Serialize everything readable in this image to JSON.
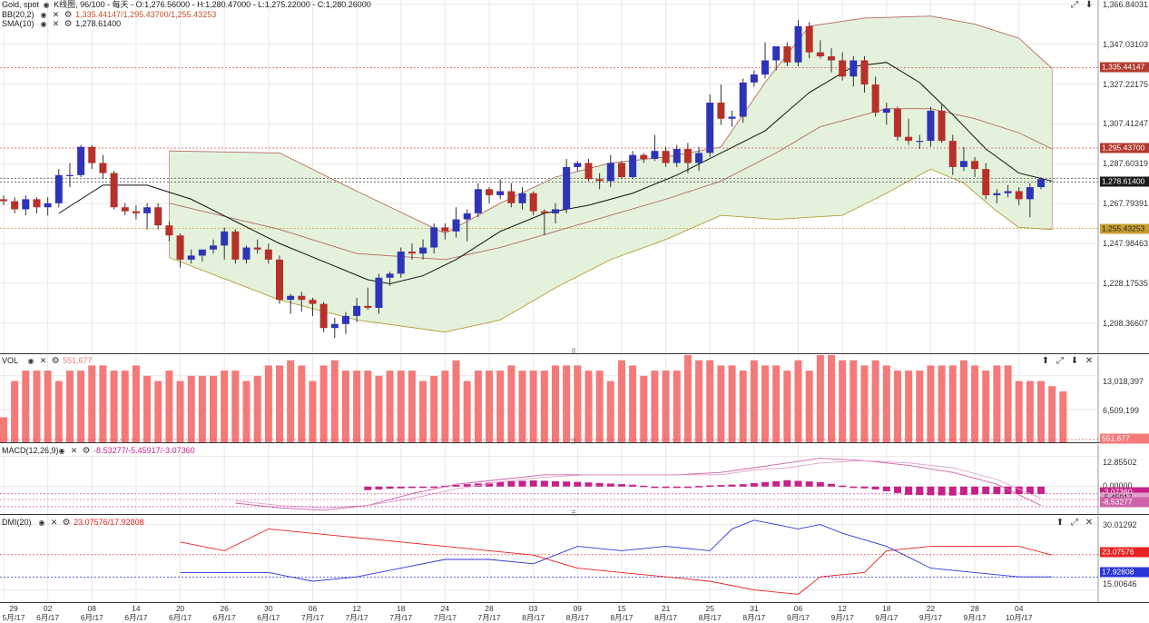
{
  "colors": {
    "up": "#2d34b8",
    "down": "#b8302a",
    "band_fill": "#e4f2dc",
    "band_line": "#b46a5c",
    "band_lower": "#b89a35",
    "sma": "#111111",
    "vol": "#f47a7a",
    "macd_hist": "#c6218a",
    "macd_line": "#cf62a8",
    "signal_line": "#e0a0cc",
    "dmi_plus": "#e82020",
    "dmi_minus": "#2a36d6",
    "grid": "#e8e8e8",
    "sep": "#333333"
  },
  "price_pane": {
    "title_prefix": "Gold, spot",
    "title_ohlc": "K线图, 96/100 - 每天 - O:1,276.56000 - H:1,280.47000 - L:1,275.22000 - C:1,280.26000",
    "bb_label": "BB(20,2)",
    "bb_values": "1,335.44147/1,295.43700/1,255.43253",
    "sma_label": "SMA(10)",
    "sma_value": "1,278.61400",
    "y_ticks": [
      "1,366.84031",
      "1,347.03103",
      "1,327.22175",
      "1,307.41247",
      "1,287.60319",
      "1,267.79391",
      "1,247.98463",
      "1,228.17535",
      "1,208.36607"
    ],
    "tags": {
      "bb_upper": "1,335.44147",
      "bb_mid": "1,295.43700",
      "last": "1,278.61400",
      "bb_lower": "1,255.43253"
    },
    "ref_lines": [
      1335.44,
      1295.44,
      1280.26,
      1278.61,
      1255.43
    ],
    "ymin": 1193,
    "ymax": 1369
  },
  "vol_pane": {
    "label": "VOL",
    "value": "551,677",
    "y_ticks": [
      "13,018,397",
      "6,509,199"
    ],
    "tag": "551,677",
    "ymax": 17000000
  },
  "macd_pane": {
    "label": "MACD(12,26,9)",
    "values": "-8.53277/-5.45917/-3.07360",
    "y_ticks": [
      "12.85502",
      "0.00000"
    ],
    "tags": {
      "hist": "-3.07360",
      "signal": "-5.45917",
      "macd": "-8.53277"
    },
    "ymin": -12,
    "ymax": 18
  },
  "dmi_pane": {
    "label": "DMI(20)",
    "values": "23.07576/17.92808",
    "y_ticks": [
      "30.01292",
      "15.00646"
    ],
    "tags": {
      "plus": "23.07576",
      "minus": "17.92808"
    },
    "ymin": 12,
    "ymax": 32
  },
  "x_labels": [
    {
      "day": "29",
      "mon": "5月/17",
      "i": 0
    },
    {
      "day": "02",
      "mon": "6月/17",
      "i": 4
    },
    {
      "day": "08",
      "mon": "6月/17",
      "i": 8
    },
    {
      "day": "14",
      "mon": "6月/17",
      "i": 12
    },
    {
      "day": "20",
      "mon": "6月/17",
      "i": 16
    },
    {
      "day": "26",
      "mon": "6月/17",
      "i": 20
    },
    {
      "day": "30",
      "mon": "6月/17",
      "i": 24
    },
    {
      "day": "06",
      "mon": "7月/17",
      "i": 28
    },
    {
      "day": "12",
      "mon": "7月/17",
      "i": 32
    },
    {
      "day": "18",
      "mon": "7月/17",
      "i": 36
    },
    {
      "day": "24",
      "mon": "7月/17",
      "i": 40
    },
    {
      "day": "28",
      "mon": "7月/17",
      "i": 44
    },
    {
      "day": "03",
      "mon": "8月/17",
      "i": 48
    },
    {
      "day": "09",
      "mon": "8月/17",
      "i": 52
    },
    {
      "day": "15",
      "mon": "8月/17",
      "i": 56
    },
    {
      "day": "21",
      "mon": "8月/17",
      "i": 60
    },
    {
      "day": "25",
      "mon": "8月/17",
      "i": 64
    },
    {
      "day": "31",
      "mon": "8月/17",
      "i": 68
    },
    {
      "day": "06",
      "mon": "9月/17",
      "i": 72
    },
    {
      "day": "12",
      "mon": "9月/17",
      "i": 76
    },
    {
      "day": "18",
      "mon": "9月/17",
      "i": 80
    },
    {
      "day": "22",
      "mon": "9月/17",
      "i": 84
    },
    {
      "day": "28",
      "mon": "9月/17",
      "i": 88
    },
    {
      "day": "04",
      "mon": "10月/17",
      "i": 92
    }
  ],
  "chart_data": {
    "type": "candlestick",
    "instrument": "Gold, spot",
    "candles_ohlc": [
      [
        1270,
        1272,
        1267,
        1269
      ],
      [
        1269,
        1271,
        1263,
        1265
      ],
      [
        1265,
        1272,
        1262,
        1270
      ],
      [
        1270,
        1271,
        1263,
        1266
      ],
      [
        1266,
        1271,
        1262,
        1268
      ],
      [
        1268,
        1285,
        1266,
        1282
      ],
      [
        1282,
        1288,
        1276,
        1282
      ],
      [
        1282,
        1297,
        1281,
        1296
      ],
      [
        1296,
        1297,
        1285,
        1288
      ],
      [
        1288,
        1292,
        1280,
        1283
      ],
      [
        1283,
        1284,
        1265,
        1266
      ],
      [
        1266,
        1268,
        1262,
        1264
      ],
      [
        1264,
        1267,
        1260,
        1263
      ],
      [
        1263,
        1268,
        1255,
        1266
      ],
      [
        1266,
        1268,
        1255,
        1257
      ],
      [
        1257,
        1259,
        1249,
        1252
      ],
      [
        1252,
        1253,
        1236,
        1240
      ],
      [
        1240,
        1245,
        1238,
        1242
      ],
      [
        1242,
        1245,
        1239,
        1245
      ],
      [
        1245,
        1250,
        1243,
        1247
      ],
      [
        1247,
        1256,
        1240,
        1254
      ],
      [
        1254,
        1255,
        1238,
        1240
      ],
      [
        1240,
        1247,
        1238,
        1246
      ],
      [
        1246,
        1250,
        1243,
        1245
      ],
      [
        1245,
        1248,
        1238,
        1240
      ],
      [
        1240,
        1242,
        1218,
        1220
      ],
      [
        1220,
        1223,
        1213,
        1222
      ],
      [
        1222,
        1224,
        1214,
        1220
      ],
      [
        1220,
        1221,
        1212,
        1218
      ],
      [
        1218,
        1219,
        1204,
        1206
      ],
      [
        1206,
        1211,
        1201,
        1208
      ],
      [
        1208,
        1214,
        1203,
        1212
      ],
      [
        1212,
        1221,
        1209,
        1217
      ],
      [
        1217,
        1226,
        1215,
        1216
      ],
      [
        1216,
        1233,
        1213,
        1231
      ],
      [
        1231,
        1234,
        1227,
        1233
      ],
      [
        1233,
        1246,
        1231,
        1244
      ],
      [
        1244,
        1248,
        1240,
        1243
      ],
      [
        1243,
        1250,
        1240,
        1246
      ],
      [
        1246,
        1258,
        1243,
        1256
      ],
      [
        1256,
        1258,
        1250,
        1254
      ],
      [
        1254,
        1266,
        1251,
        1260
      ],
      [
        1260,
        1265,
        1249,
        1263
      ],
      [
        1263,
        1278,
        1261,
        1275
      ],
      [
        1275,
        1276,
        1268,
        1272
      ],
      [
        1272,
        1280,
        1270,
        1274
      ],
      [
        1274,
        1278,
        1266,
        1268
      ],
      [
        1268,
        1276,
        1265,
        1273
      ],
      [
        1273,
        1274,
        1262,
        1264
      ],
      [
        1264,
        1265,
        1252,
        1263
      ],
      [
        1263,
        1268,
        1258,
        1265
      ],
      [
        1265,
        1290,
        1263,
        1286
      ],
      [
        1286,
        1289,
        1284,
        1288
      ],
      [
        1288,
        1290,
        1279,
        1280
      ],
      [
        1280,
        1283,
        1275,
        1279
      ],
      [
        1279,
        1292,
        1276,
        1288
      ],
      [
        1288,
        1289,
        1280,
        1281
      ],
      [
        1281,
        1294,
        1280,
        1292
      ],
      [
        1292,
        1293,
        1288,
        1290
      ],
      [
        1290,
        1302,
        1289,
        1294
      ],
      [
        1294,
        1296,
        1286,
        1288
      ],
      [
        1288,
        1297,
        1286,
        1295
      ],
      [
        1295,
        1298,
        1283,
        1288
      ],
      [
        1288,
        1296,
        1284,
        1293
      ],
      [
        1293,
        1322,
        1291,
        1318
      ],
      [
        1318,
        1327,
        1307,
        1310
      ],
      [
        1310,
        1314,
        1306,
        1311
      ],
      [
        1311,
        1330,
        1308,
        1328
      ],
      [
        1328,
        1334,
        1326,
        1332
      ],
      [
        1332,
        1348,
        1330,
        1339
      ],
      [
        1339,
        1346,
        1334,
        1346
      ],
      [
        1346,
        1348,
        1336,
        1338
      ],
      [
        1338,
        1359,
        1336,
        1356
      ],
      [
        1356,
        1358,
        1340,
        1343
      ],
      [
        1343,
        1349,
        1340,
        1341
      ],
      [
        1341,
        1345,
        1333,
        1339
      ],
      [
        1339,
        1343,
        1329,
        1331
      ],
      [
        1331,
        1341,
        1326,
        1339
      ],
      [
        1339,
        1341,
        1323,
        1327
      ],
      [
        1327,
        1331,
        1311,
        1313
      ],
      [
        1313,
        1318,
        1307,
        1315
      ],
      [
        1315,
        1316,
        1299,
        1301
      ],
      [
        1301,
        1310,
        1297,
        1299
      ],
      [
        1299,
        1302,
        1295,
        1299
      ],
      [
        1299,
        1316,
        1296,
        1314
      ],
      [
        1314,
        1317,
        1298,
        1299
      ],
      [
        1299,
        1302,
        1282,
        1286
      ],
      [
        1286,
        1296,
        1284,
        1289
      ],
      [
        1289,
        1291,
        1281,
        1285
      ],
      [
        1285,
        1288,
        1270,
        1272
      ],
      [
        1272,
        1275,
        1268,
        1273
      ],
      [
        1273,
        1277,
        1271,
        1274
      ],
      [
        1274,
        1276,
        1267,
        1270
      ],
      [
        1270,
        1278,
        1261,
        1276
      ],
      [
        1276,
        1281,
        1275,
        1280
      ]
    ],
    "sma10": [
      [
        5,
        1263
      ],
      [
        9,
        1277
      ],
      [
        13,
        1277
      ],
      [
        17,
        1270
      ],
      [
        21,
        1259
      ],
      [
        25,
        1248
      ],
      [
        29,
        1239
      ],
      [
        33,
        1230
      ],
      [
        35,
        1228
      ],
      [
        38,
        1232
      ],
      [
        41,
        1240
      ],
      [
        45,
        1254
      ],
      [
        49,
        1263
      ],
      [
        53,
        1267
      ],
      [
        57,
        1273
      ],
      [
        61,
        1282
      ],
      [
        65,
        1293
      ],
      [
        69,
        1304
      ],
      [
        73,
        1323
      ],
      [
        77,
        1336
      ],
      [
        80,
        1338
      ],
      [
        83,
        1328
      ],
      [
        86,
        1312
      ],
      [
        89,
        1295
      ],
      [
        92,
        1283
      ],
      [
        95,
        1279
      ]
    ],
    "bb_upper": [
      [
        15,
        1294
      ],
      [
        25,
        1293
      ],
      [
        32,
        1274
      ],
      [
        40,
        1253
      ],
      [
        45,
        1268
      ],
      [
        50,
        1281
      ],
      [
        55,
        1288
      ],
      [
        60,
        1291
      ],
      [
        65,
        1296
      ],
      [
        69,
        1328
      ],
      [
        73,
        1356
      ],
      [
        78,
        1360
      ],
      [
        84,
        1361
      ],
      [
        88,
        1357
      ],
      [
        92,
        1350
      ],
      [
        95,
        1335
      ]
    ],
    "bb_mid": [
      [
        15,
        1268
      ],
      [
        25,
        1255
      ],
      [
        32,
        1243
      ],
      [
        40,
        1240
      ],
      [
        45,
        1246
      ],
      [
        50,
        1254
      ],
      [
        55,
        1262
      ],
      [
        60,
        1270
      ],
      [
        65,
        1279
      ],
      [
        70,
        1293
      ],
      [
        74,
        1306
      ],
      [
        80,
        1315
      ],
      [
        84,
        1315
      ],
      [
        88,
        1310
      ],
      [
        92,
        1303
      ],
      [
        95,
        1295
      ]
    ],
    "bb_lower": [
      [
        15,
        1241
      ],
      [
        25,
        1220
      ],
      [
        32,
        1210
      ],
      [
        40,
        1204
      ],
      [
        45,
        1210
      ],
      [
        50,
        1226
      ],
      [
        55,
        1240
      ],
      [
        60,
        1250
      ],
      [
        65,
        1262
      ],
      [
        70,
        1260
      ],
      [
        76,
        1262
      ],
      [
        80,
        1273
      ],
      [
        84,
        1285
      ],
      [
        87,
        1278
      ],
      [
        90,
        1264
      ],
      [
        92,
        1256
      ],
      [
        95,
        1255
      ]
    ],
    "volume": [
      5,
      12,
      14,
      14,
      14,
      12,
      14,
      14,
      15,
      15,
      14,
      14,
      15,
      13,
      12,
      14,
      12,
      13,
      13,
      13,
      14,
      14,
      12,
      13,
      15,
      15,
      16,
      15,
      12,
      15,
      16,
      14,
      14,
      14,
      13,
      14,
      14,
      14,
      12,
      13,
      14,
      16,
      12,
      14,
      14,
      14,
      15,
      14,
      14,
      14,
      15,
      15,
      15,
      14,
      14,
      12,
      16,
      15,
      13,
      14,
      14,
      14,
      18,
      16,
      16,
      15,
      15,
      14,
      16,
      15,
      15,
      14,
      16,
      14,
      17,
      17,
      16,
      16,
      15,
      16,
      15,
      14,
      14,
      14,
      15,
      15,
      15,
      16,
      15,
      14,
      15,
      15,
      12,
      12,
      12,
      11,
      10
    ],
    "macd_hist": [
      [
        33,
        -1.5
      ],
      [
        35,
        -0.9
      ],
      [
        37,
        -0.6
      ],
      [
        41,
        0.7
      ],
      [
        46,
        2.3
      ],
      [
        48,
        2.6
      ],
      [
        52,
        2.0
      ],
      [
        57,
        0.8
      ],
      [
        60,
        -0.5
      ],
      [
        64,
        0.5
      ],
      [
        67,
        1.0
      ],
      [
        69,
        1.9
      ],
      [
        71,
        2.7
      ],
      [
        74,
        1.9
      ],
      [
        77,
        -0.3
      ],
      [
        79,
        -1.2
      ],
      [
        82,
        -3.5
      ],
      [
        86,
        -3.8
      ],
      [
        89,
        -3.2
      ],
      [
        94,
        -3.1
      ]
    ],
    "macd_line": [
      [
        21,
        -7
      ],
      [
        25,
        -9
      ],
      [
        29,
        -10
      ],
      [
        33,
        -8
      ],
      [
        37,
        -3
      ],
      [
        41,
        1
      ],
      [
        45,
        3
      ],
      [
        49,
        5
      ],
      [
        53,
        5
      ],
      [
        57,
        5
      ],
      [
        61,
        5
      ],
      [
        65,
        6
      ],
      [
        68,
        8
      ],
      [
        71,
        10
      ],
      [
        74,
        12
      ],
      [
        78,
        11
      ],
      [
        82,
        9
      ],
      [
        86,
        6
      ],
      [
        90,
        1
      ],
      [
        94,
        -8
      ]
    ],
    "signal_line": [
      [
        21,
        -6
      ],
      [
        25,
        -8
      ],
      [
        29,
        -9
      ],
      [
        33,
        -8
      ],
      [
        37,
        -5
      ],
      [
        41,
        -1
      ],
      [
        45,
        2
      ],
      [
        49,
        4
      ],
      [
        53,
        5
      ],
      [
        57,
        5
      ],
      [
        61,
        5
      ],
      [
        65,
        5
      ],
      [
        68,
        7
      ],
      [
        71,
        8
      ],
      [
        74,
        10
      ],
      [
        78,
        11
      ],
      [
        82,
        10
      ],
      [
        86,
        8
      ],
      [
        90,
        3
      ],
      [
        94,
        -5
      ]
    ],
    "dmi_plus": [
      [
        16,
        26
      ],
      [
        20,
        24
      ],
      [
        24,
        29
      ],
      [
        28,
        28
      ],
      [
        32,
        27
      ],
      [
        36,
        26
      ],
      [
        40,
        25
      ],
      [
        44,
        24
      ],
      [
        48,
        23
      ],
      [
        52,
        20
      ],
      [
        56,
        19
      ],
      [
        60,
        18
      ],
      [
        64,
        17
      ],
      [
        68,
        15
      ],
      [
        72,
        14
      ],
      [
        74,
        18
      ],
      [
        78,
        19
      ],
      [
        80,
        24
      ],
      [
        84,
        25
      ],
      [
        88,
        25
      ],
      [
        92,
        25
      ],
      [
        95,
        23
      ]
    ],
    "dmi_minus": [
      [
        16,
        19
      ],
      [
        20,
        19
      ],
      [
        24,
        19
      ],
      [
        28,
        17
      ],
      [
        32,
        18
      ],
      [
        36,
        20
      ],
      [
        40,
        22
      ],
      [
        44,
        22
      ],
      [
        48,
        21
      ],
      [
        52,
        25
      ],
      [
        56,
        24
      ],
      [
        60,
        25
      ],
      [
        64,
        24
      ],
      [
        66,
        29
      ],
      [
        68,
        31
      ],
      [
        70,
        30
      ],
      [
        72,
        29
      ],
      [
        74,
        30
      ],
      [
        76,
        28
      ],
      [
        80,
        25
      ],
      [
        84,
        20
      ],
      [
        88,
        19
      ],
      [
        92,
        18
      ],
      [
        95,
        18
      ]
    ]
  }
}
